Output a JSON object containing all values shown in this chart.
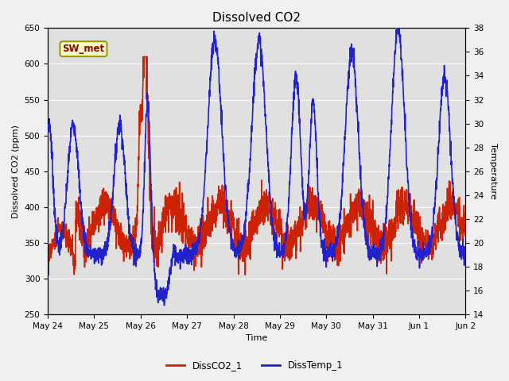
{
  "title": "Dissolved CO2",
  "xlabel": "Time",
  "ylabel_left": "Dissolved CO2 (ppm)",
  "ylabel_right": "Temperature",
  "legend_labels": [
    "DissCO2_1",
    "DissTemp_1"
  ],
  "legend_colors": [
    "#cc2200",
    "#2222cc"
  ],
  "label_box_text": "SW_met",
  "label_box_facecolor": "#ffffcc",
  "label_box_edgecolor": "#999900",
  "label_box_textcolor": "#880000",
  "plot_bg_color": "#e0e0e0",
  "fig_bg_color": "#f0f0f0",
  "ylim_left": [
    250,
    650
  ],
  "ylim_right": [
    14,
    38
  ],
  "yticks_left": [
    250,
    300,
    350,
    400,
    450,
    500,
    550,
    600,
    650
  ],
  "yticks_right": [
    14,
    16,
    18,
    20,
    22,
    24,
    26,
    28,
    30,
    32,
    34,
    36,
    38
  ],
  "grid_color": "#ffffff",
  "line_width": 1.2,
  "title_fontsize": 11
}
